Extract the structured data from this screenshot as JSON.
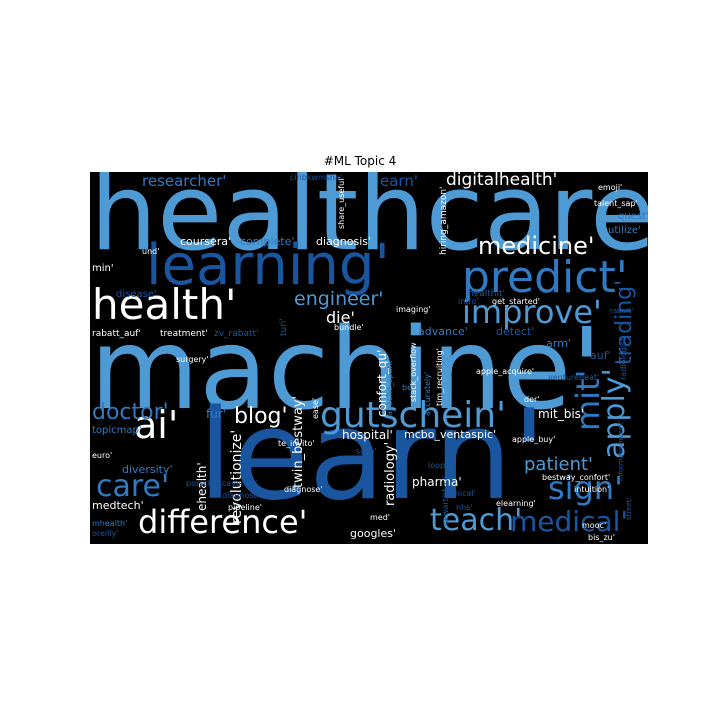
{
  "chart_data": {
    "type": "wordcloud",
    "title": "#ML Topic 4",
    "background": "#000000",
    "colors": {
      "white": "#ffffff",
      "light": "#a9cce8",
      "sky": "#4e9ad4",
      "mid": "#2e7bc4",
      "deep": "#1a56a0",
      "dark": "#12407a"
    },
    "words": [
      {
        "text": "healthcare'",
        "weight": 100,
        "color": "sky",
        "vertical": false
      },
      {
        "text": "machine'",
        "weight": 100,
        "color": "sky",
        "vertical": false
      },
      {
        "text": "learn'",
        "weight": 100,
        "color": "deep",
        "vertical": false
      },
      {
        "text": "learning'",
        "weight": 62,
        "color": "deep",
        "vertical": false
      },
      {
        "text": "predict'",
        "weight": 52,
        "color": "mid",
        "vertical": false
      },
      {
        "text": "health'",
        "weight": 48,
        "color": "white",
        "vertical": false
      },
      {
        "text": "ai'",
        "weight": 42,
        "color": "white",
        "vertical": false
      },
      {
        "text": "gutschein'",
        "weight": 40,
        "color": "sky",
        "vertical": false
      },
      {
        "text": "difference'",
        "weight": 36,
        "color": "white",
        "vertical": false
      },
      {
        "text": "improve'",
        "weight": 35,
        "color": "sky",
        "vertical": false
      },
      {
        "text": "sign'",
        "weight": 33,
        "color": "mid",
        "vertical": false
      },
      {
        "text": "teach'",
        "weight": 32,
        "color": "sky",
        "vertical": false
      },
      {
        "text": "care'",
        "weight": 32,
        "color": "mid",
        "vertical": false
      },
      {
        "text": "medical'",
        "weight": 30,
        "color": "deep",
        "vertical": false
      },
      {
        "text": "mit'",
        "weight": 30,
        "color": "mid",
        "vertical": true
      },
      {
        "text": "apply'",
        "weight": 30,
        "color": "sky",
        "vertical": true
      },
      {
        "text": "medicine'",
        "weight": 25,
        "color": "white",
        "vertical": false
      },
      {
        "text": "doctor'",
        "weight": 24,
        "color": "mid",
        "vertical": false
      },
      {
        "text": "trading'",
        "weight": 22,
        "color": "deep",
        "vertical": true
      },
      {
        "text": "blog'",
        "weight": 21,
        "color": "white",
        "vertical": false
      },
      {
        "text": "engineer'",
        "weight": 20,
        "color": "sky",
        "vertical": false
      },
      {
        "text": "patient'",
        "weight": 18,
        "color": "sky",
        "vertical": false
      },
      {
        "text": "digitalhealth'",
        "weight": 17,
        "color": "white",
        "vertical": false
      },
      {
        "text": "researcher'",
        "weight": 16,
        "color": "mid",
        "vertical": false
      },
      {
        "text": "die'",
        "weight": 16,
        "color": "white",
        "vertical": false
      },
      {
        "text": "earn'",
        "weight": 15,
        "color": "deep",
        "vertical": false
      },
      {
        "text": "revolutionize'",
        "weight": 14,
        "color": "white",
        "vertical": true
      },
      {
        "text": "twin_bestway'",
        "weight": 13,
        "color": "white",
        "vertical": true
      },
      {
        "text": "mit_bis'",
        "weight": 13,
        "color": "white",
        "vertical": false
      },
      {
        "text": "hospital'",
        "weight": 13,
        "color": "white",
        "vertical": false
      },
      {
        "text": "radiology'",
        "weight": 13,
        "color": "white",
        "vertical": true
      },
      {
        "text": "confort_qu'",
        "weight": 12,
        "color": "white",
        "vertical": true
      },
      {
        "text": "diversity'",
        "weight": 12,
        "color": "mid",
        "vertical": false
      },
      {
        "text": "medtech'",
        "weight": 12,
        "color": "white",
        "vertical": false
      },
      {
        "text": "ehealth'",
        "weight": 12,
        "color": "white",
        "vertical": true
      },
      {
        "text": "fur'",
        "weight": 12,
        "color": "mid",
        "vertical": false
      },
      {
        "text": "mcbo_ventaspic'",
        "weight": 11,
        "color": "white",
        "vertical": false
      },
      {
        "text": "pharma'",
        "weight": 12,
        "color": "white",
        "vertical": false
      },
      {
        "text": "googles'",
        "weight": 11,
        "color": "white",
        "vertical": false
      },
      {
        "text": "coursera'",
        "weight": 11,
        "color": "white",
        "vertical": false
      },
      {
        "text": "complete'",
        "weight": 11,
        "color": "mid",
        "vertical": false
      },
      {
        "text": "diagnosis'",
        "weight": 11,
        "color": "white",
        "vertical": false
      },
      {
        "text": "topicmap'",
        "weight": 11,
        "color": "mid",
        "vertical": false
      },
      {
        "text": "advance'",
        "weight": 11,
        "color": "mid",
        "vertical": false
      },
      {
        "text": "detect'",
        "weight": 11,
        "color": "deep",
        "vertical": false
      },
      {
        "text": "arm'",
        "weight": 11,
        "color": "mid",
        "vertical": false
      },
      {
        "text": "auf'",
        "weight": 11,
        "color": "deep",
        "vertical": false
      },
      {
        "text": "quest'",
        "weight": 10,
        "color": "mid",
        "vertical": false
      },
      {
        "text": "utilize'",
        "weight": 10,
        "color": "mid",
        "vertical": false
      },
      {
        "text": "disease'",
        "weight": 10,
        "color": "deep",
        "vertical": false
      },
      {
        "text": "min'",
        "weight": 10,
        "color": "white",
        "vertical": false
      },
      {
        "text": "healthit'",
        "weight": 9,
        "color": "deep",
        "vertical": false
      },
      {
        "text": "hiring_amazon'",
        "weight": 9,
        "color": "white",
        "vertical": true
      },
      {
        "text": "rabatt_auf'",
        "weight": 9,
        "color": "white",
        "vertical": false
      },
      {
        "text": "treatment'",
        "weight": 9,
        "color": "white",
        "vertical": false
      },
      {
        "text": "zv_rabatt'",
        "weight": 9,
        "color": "deep",
        "vertical": false
      },
      {
        "text": "turi'",
        "weight": 9,
        "color": "deep",
        "vertical": true
      },
      {
        "text": "bundle'",
        "weight": 8,
        "color": "white",
        "vertical": false
      },
      {
        "text": "imaging'",
        "weight": 8,
        "color": "white",
        "vertical": false
      },
      {
        "text": "surgery'",
        "weight": 8,
        "color": "white",
        "vertical": false
      },
      {
        "text": "get_started'",
        "weight": 8,
        "color": "white",
        "vertical": false
      },
      {
        "text": "intro'",
        "weight": 8,
        "color": "deep",
        "vertical": false
      },
      {
        "text": "apple_acquire'",
        "weight": 8,
        "color": "white",
        "vertical": false
      },
      {
        "text": "venturebeat'",
        "weight": 8,
        "color": "deep",
        "vertical": false
      },
      {
        "text": "radiologist'",
        "weight": 8,
        "color": "deep",
        "vertical": true
      },
      {
        "text": "bei'",
        "weight": 8,
        "color": "mid",
        "vertical": false
      },
      {
        "text": "stack_overflow",
        "weight": 8,
        "color": "white",
        "vertical": true
      },
      {
        "text": "accurately'",
        "weight": 8,
        "color": "mid",
        "vertical": true
      },
      {
        "text": "tim_recruiting'",
        "weight": 8,
        "color": "white",
        "vertical": true
      },
      {
        "text": "apache_spark'",
        "weight": 8,
        "color": "mid",
        "vertical": true
      },
      {
        "text": "share_useful'",
        "weight": 8,
        "color": "white",
        "vertical": true
      },
      {
        "text": "cinbkwmsha'",
        "weight": 8,
        "color": "deep",
        "vertical": false
      },
      {
        "text": "emoji'",
        "weight": 8,
        "color": "white",
        "vertical": false
      },
      {
        "text": "talent_sap'",
        "weight": 8,
        "color": "white",
        "vertical": false
      },
      {
        "text": "und'",
        "weight": 8,
        "color": "white",
        "vertical": false
      },
      {
        "text": "ease'",
        "weight": 8,
        "color": "white",
        "vertical": true
      },
      {
        "text": "te_invito'",
        "weight": 8,
        "color": "white",
        "vertical": false
      },
      {
        "text": "scan'",
        "weight": 8,
        "color": "deep",
        "vertical": false
      },
      {
        "text": "loop'",
        "weight": 8,
        "color": "deep",
        "vertical": false
      },
      {
        "text": "der'",
        "weight": 8,
        "color": "white",
        "vertical": false
      },
      {
        "text": "apple_buy'",
        "weight": 8,
        "color": "white",
        "vertical": false
      },
      {
        "text": "bestway_confort'",
        "weight": 8,
        "color": "white",
        "vertical": false
      },
      {
        "text": "intuition'",
        "weight": 8,
        "color": "white",
        "vertical": false
      },
      {
        "text": "rabatt'",
        "weight": 7,
        "color": "deep",
        "vertical": false
      },
      {
        "text": "informationweek'",
        "weight": 7,
        "color": "deep",
        "vertical": true
      },
      {
        "text": "euro'",
        "weight": 8,
        "color": "white",
        "vertical": false
      },
      {
        "text": "porsche_cayenne'",
        "weight": 8,
        "color": "deep",
        "vertical": false
      },
      {
        "text": "diagnostic'",
        "weight": 8,
        "color": "deep",
        "vertical": false
      },
      {
        "text": "pipeline'",
        "weight": 8,
        "color": "white",
        "vertical": false
      },
      {
        "text": "diagnose'",
        "weight": 8,
        "color": "white",
        "vertical": false
      },
      {
        "text": "newartist_ci'",
        "weight": 8,
        "color": "deep",
        "vertical": true
      },
      {
        "text": "clinical'",
        "weight": 8,
        "color": "deep",
        "vertical": false
      },
      {
        "text": "nhs'",
        "weight": 8,
        "color": "deep",
        "vertical": false
      },
      {
        "text": "elearning'",
        "weight": 8,
        "color": "white",
        "vertical": false
      },
      {
        "text": "med'",
        "weight": 8,
        "color": "white",
        "vertical": false
      },
      {
        "text": "mooc'",
        "weight": 8,
        "color": "white",
        "vertical": false
      },
      {
        "text": "bis_zu'",
        "weight": 8,
        "color": "white",
        "vertical": false
      },
      {
        "text": "street'",
        "weight": 7,
        "color": "deep",
        "vertical": true
      },
      {
        "text": "mhealth'",
        "weight": 8,
        "color": "mid",
        "vertical": false
      },
      {
        "text": "oreilly'",
        "weight": 8,
        "color": "deep",
        "vertical": false
      }
    ]
  }
}
